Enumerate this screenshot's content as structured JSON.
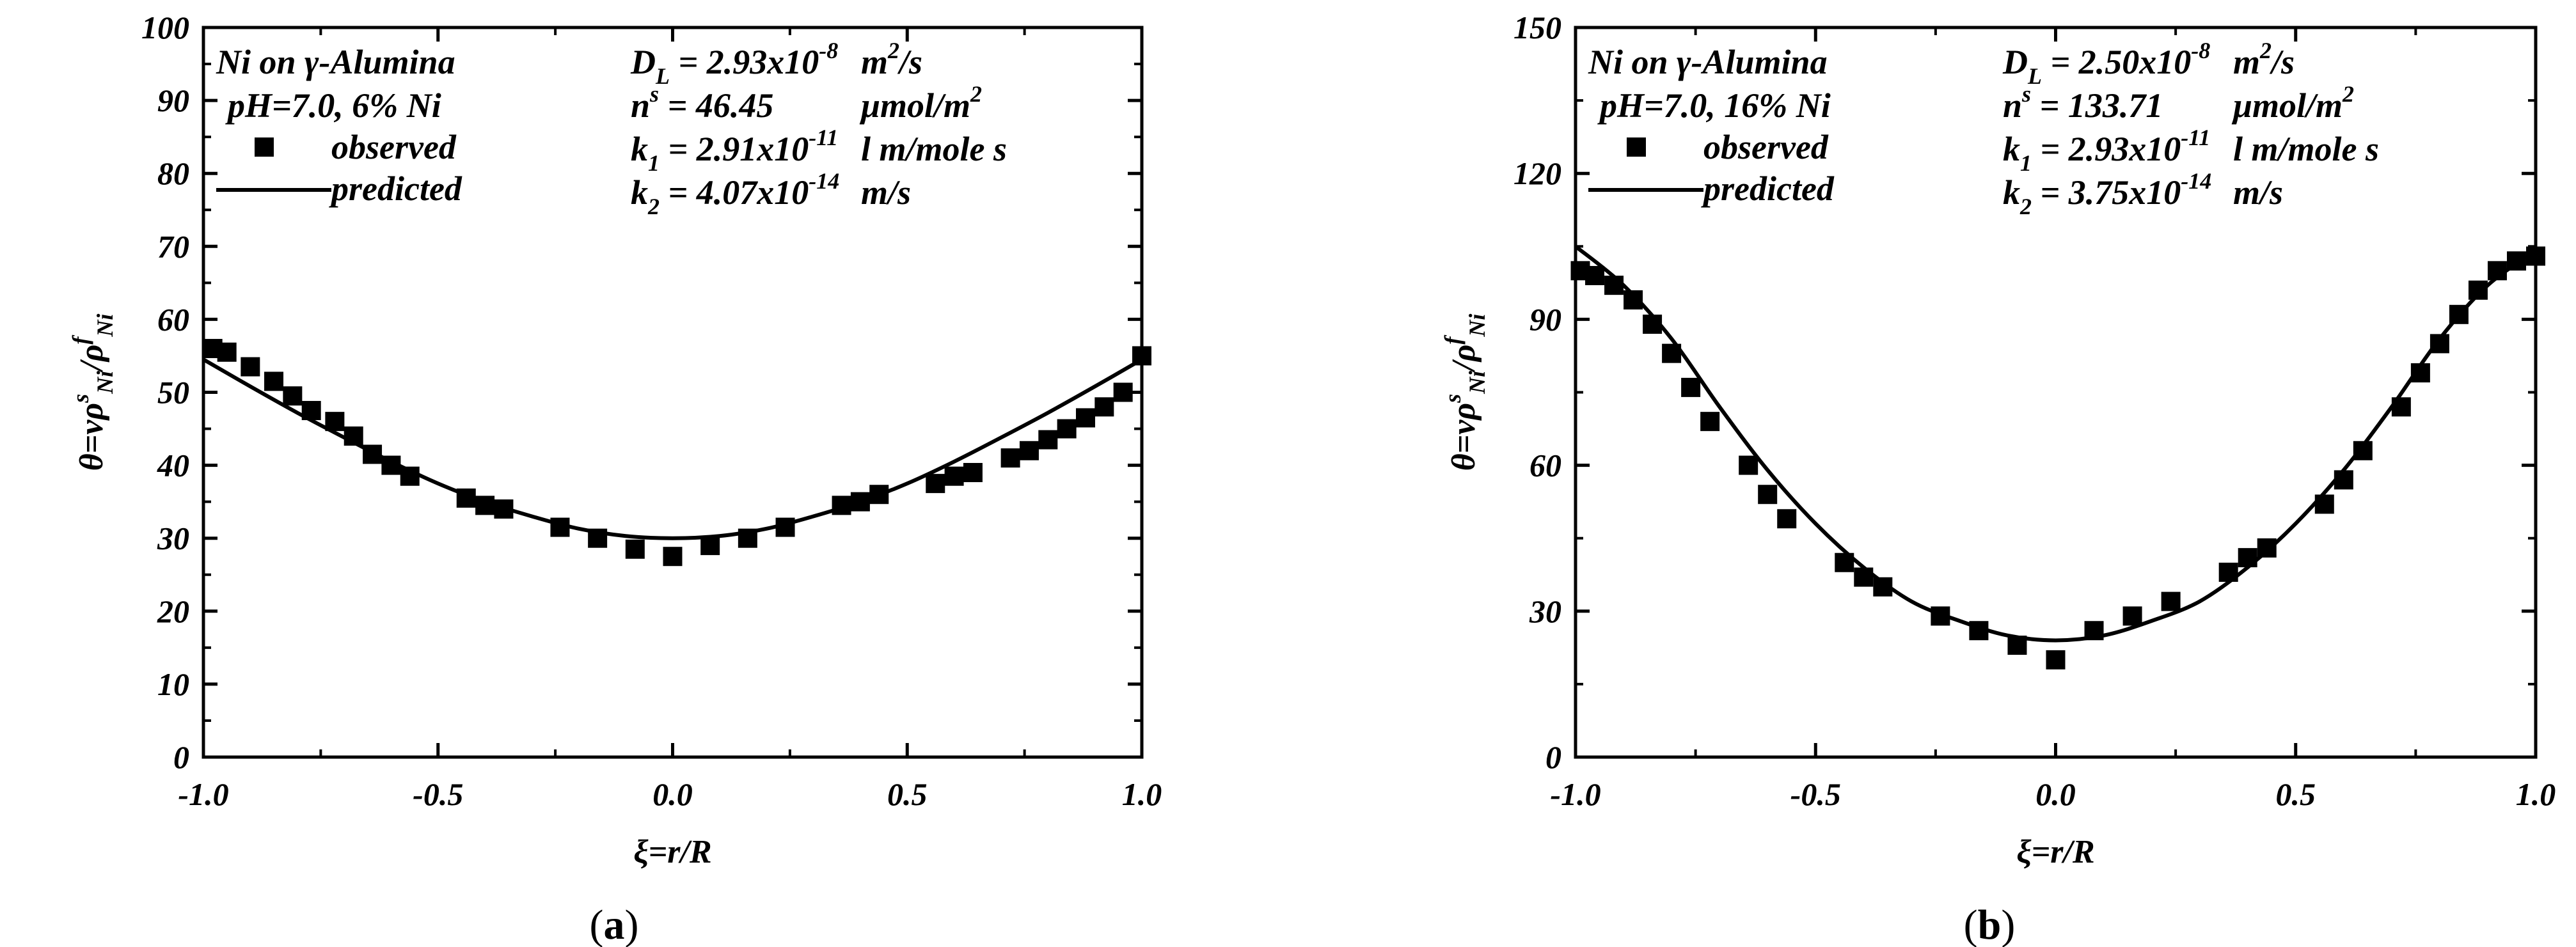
{
  "chart_data": [
    {
      "id": "a",
      "type": "scatter",
      "caption_letter": "a",
      "xlabel": "ξ=r/R",
      "ylabel": "θ=νρ^s_Ni/ρ^f_Ni",
      "xlim": [
        -1.0,
        1.0
      ],
      "ylim": [
        0,
        100
      ],
      "xticks": [
        -1.0,
        -0.5,
        0.0,
        0.5,
        1.0
      ],
      "xtick_labels": [
        "-1.0",
        "-0.5",
        "0.0",
        "0.5",
        "1.0"
      ],
      "yticks": [
        0,
        10,
        20,
        30,
        40,
        50,
        60,
        70,
        80,
        90,
        100
      ],
      "ytick_labels": [
        "0",
        "10",
        "20",
        "30",
        "40",
        "50",
        "60",
        "70",
        "80",
        "90",
        "100"
      ],
      "legend": {
        "line1": "Ni on γ-Alumina",
        "line2": "pH=7.0, 6% Ni",
        "observed": "observed",
        "predicted": "predicted"
      },
      "params": [
        {
          "sym": "D",
          "sub": "L",
          "sup": "",
          "eq": "= 2.93x10",
          "exp": "-8",
          "unit": "m",
          "unit_sup": "2",
          "unit_tail": "/s"
        },
        {
          "sym": "n",
          "sub": "",
          "sup": "s",
          "eq": "= 46.45",
          "exp": "",
          "unit": "μmol/m",
          "unit_sup": "2",
          "unit_tail": ""
        },
        {
          "sym": "k",
          "sub": "1",
          "sup": "",
          "eq": "= 2.91x10",
          "exp": "-11",
          "unit": "l m/mole s",
          "unit_sup": "",
          "unit_tail": ""
        },
        {
          "sym": "k",
          "sub": "2",
          "sup": "",
          "eq": "= 4.07x10",
          "exp": "-14",
          "unit": "m/s",
          "unit_sup": "",
          "unit_tail": ""
        }
      ],
      "series": [
        {
          "name": "observed",
          "x": [
            -0.98,
            -0.95,
            -0.9,
            -0.85,
            -0.81,
            -0.77,
            -0.72,
            -0.68,
            -0.64,
            -0.6,
            -0.56,
            -0.44,
            -0.4,
            -0.36,
            -0.24,
            -0.16,
            -0.08,
            0.0,
            0.08,
            0.16,
            0.24,
            0.36,
            0.4,
            0.44,
            0.56,
            0.6,
            0.64,
            0.72,
            0.76,
            0.8,
            0.84,
            0.88,
            0.92,
            0.96,
            1.0
          ],
          "y": [
            56,
            55.5,
            53.5,
            51.5,
            49.5,
            47.5,
            46,
            44,
            41.5,
            40,
            38.5,
            35.5,
            34.5,
            34,
            31.5,
            30,
            28.5,
            27.5,
            29,
            30,
            31.5,
            34.5,
            35,
            36,
            37.5,
            38.5,
            39,
            41,
            42,
            43.5,
            45,
            46.5,
            48,
            50,
            55
          ]
        },
        {
          "name": "predicted",
          "x": [
            -1.0,
            -0.9,
            -0.8,
            -0.7,
            -0.6,
            -0.5,
            -0.4,
            -0.3,
            -0.2,
            -0.1,
            0.0,
            0.1,
            0.2,
            0.3,
            0.4,
            0.5,
            0.6,
            0.7,
            0.8,
            0.9,
            1.0
          ],
          "y": [
            54.5,
            50.8,
            47.2,
            43.8,
            40.5,
            37.5,
            35,
            33,
            31.3,
            30.3,
            30,
            30.3,
            31.3,
            33,
            35,
            37.5,
            40.5,
            43.8,
            47.2,
            50.8,
            54.5
          ]
        }
      ]
    },
    {
      "id": "b",
      "type": "scatter",
      "caption_letter": "b",
      "xlabel": "ξ=r/R",
      "ylabel": "θ=νρ^s_Ni/ρ^f_Ni",
      "xlim": [
        -1.0,
        1.0
      ],
      "ylim": [
        0,
        150
      ],
      "xticks": [
        -1.0,
        -0.5,
        0.0,
        0.5,
        1.0
      ],
      "xtick_labels": [
        "-1.0",
        "-0.5",
        "0.0",
        "0.5",
        "1.0"
      ],
      "yticks": [
        0,
        30,
        60,
        90,
        120,
        150
      ],
      "ytick_labels": [
        "0",
        "30",
        "60",
        "90",
        "120",
        "150"
      ],
      "legend": {
        "line1": "Ni on γ-Alumina",
        "line2": "pH=7.0, 16% Ni",
        "observed": "observed",
        "predicted": "predicted"
      },
      "params": [
        {
          "sym": "D",
          "sub": "L",
          "sup": "",
          "eq": "= 2.50x10",
          "exp": "-8",
          "unit": "m",
          "unit_sup": "2",
          "unit_tail": "/s"
        },
        {
          "sym": "n",
          "sub": "",
          "sup": "s",
          "eq": "= 133.71",
          "exp": "",
          "unit": "μmol/m",
          "unit_sup": "2",
          "unit_tail": ""
        },
        {
          "sym": "k",
          "sub": "1",
          "sup": "",
          "eq": "= 2.93x10",
          "exp": "-11",
          "unit": "l m/mole s",
          "unit_sup": "",
          "unit_tail": ""
        },
        {
          "sym": "k",
          "sub": "2",
          "sup": "",
          "eq": "= 3.75x10",
          "exp": "-14",
          "unit": "m/s",
          "unit_sup": "",
          "unit_tail": ""
        }
      ],
      "series": [
        {
          "name": "observed",
          "x": [
            -0.99,
            -0.96,
            -0.92,
            -0.88,
            -0.84,
            -0.8,
            -0.76,
            -0.72,
            -0.64,
            -0.6,
            -0.56,
            -0.44,
            -0.4,
            -0.36,
            -0.24,
            -0.16,
            -0.08,
            0.0,
            0.08,
            0.16,
            0.24,
            0.36,
            0.4,
            0.44,
            0.56,
            0.6,
            0.64,
            0.72,
            0.76,
            0.8,
            0.84,
            0.88,
            0.92,
            0.96,
            1.0
          ],
          "y": [
            100,
            99,
            97,
            94,
            89,
            83,
            76,
            69,
            60,
            54,
            49,
            40,
            37,
            35,
            29,
            26,
            23,
            20,
            26,
            29,
            32,
            38,
            41,
            43,
            52,
            57,
            63,
            72,
            79,
            85,
            91,
            96,
            100,
            102,
            103
          ]
        },
        {
          "name": "predicted",
          "x": [
            -1.0,
            -0.9,
            -0.8,
            -0.7,
            -0.6,
            -0.5,
            -0.4,
            -0.3,
            -0.2,
            -0.1,
            0.0,
            0.1,
            0.2,
            0.3,
            0.4,
            0.5,
            0.6,
            0.7,
            0.8,
            0.9,
            1.0
          ],
          "y": [
            105,
            97,
            86,
            72,
            59,
            48,
            39,
            32,
            28,
            25,
            24,
            25,
            28,
            32,
            39,
            48,
            59,
            72,
            86,
            97,
            104
          ]
        }
      ]
    }
  ]
}
